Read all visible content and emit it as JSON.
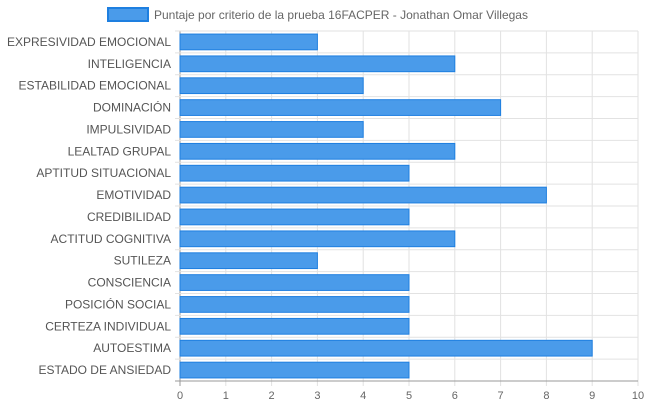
{
  "chart_data": {
    "type": "bar",
    "orientation": "horizontal",
    "categories": [
      "EXPRESIVIDAD EMOCIONAL",
      "INTELIGENCIA",
      "ESTABILIDAD EMOCIONAL",
      "DOMINACIÓN",
      "IMPULSIVIDAD",
      "LEALTAD GRUPAL",
      "APTITUD SITUACIONAL",
      "EMOTIVIDAD",
      "CREDIBILIDAD",
      "ACTITUD COGNITIVA",
      "SUTILEZA",
      "CONSCIENCIA",
      "POSICIÓN SOCIAL",
      "CERTEZA INDIVIDUAL",
      "AUTOESTIMA",
      "ESTADO DE ANSIEDAD"
    ],
    "series": [
      {
        "name": "Puntaje por criterio de la prueba 16FACPER - Jonathan Omar Villegas",
        "values": [
          3,
          6,
          4,
          7,
          4,
          6,
          5,
          8,
          5,
          6,
          3,
          5,
          5,
          5,
          9,
          5
        ],
        "color": "#4a9bea",
        "border_color": "#1e7fe0"
      }
    ],
    "xlim": [
      0,
      10
    ],
    "x_ticks": [
      "0",
      "1",
      "2",
      "3",
      "4",
      "5",
      "6",
      "7",
      "8",
      "9",
      "10"
    ],
    "grid": true,
    "legend_position": "top"
  }
}
